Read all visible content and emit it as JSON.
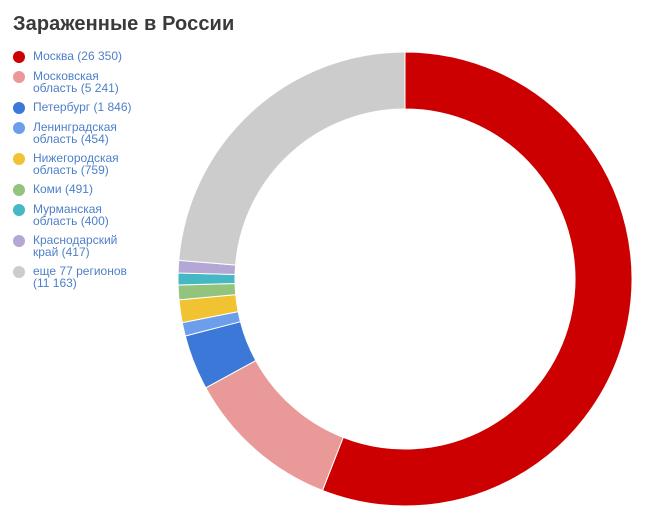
{
  "title": "Зараженные в России",
  "chart_data": {
    "type": "pie",
    "variant": "donut",
    "title": "Зараженные в России",
    "legend_position": "left",
    "start_angle_deg": 0,
    "direction": "clockwise",
    "categories": [
      "Москва",
      "Московская область",
      "Петербург",
      "Ленинградская область",
      "Нижегородская область",
      "Коми",
      "Мурманская область",
      "Краснодарский край",
      "еще 77 регионов"
    ],
    "values": [
      26350,
      5241,
      1846,
      454,
      759,
      491,
      400,
      417,
      11163
    ],
    "colors": [
      "#cc0000",
      "#ea9999",
      "#3c78d8",
      "#6d9eeb",
      "#f1c232",
      "#93c47d",
      "#45b8c4",
      "#b4a7d6",
      "#cccccc"
    ]
  },
  "legend": {
    "items": [
      {
        "label_line1": "Москва (26 350)",
        "label_line2": ""
      },
      {
        "label_line1": "Московская",
        "label_line2": "область (5 241)"
      },
      {
        "label_line1": "Петербург (1 846)",
        "label_line2": ""
      },
      {
        "label_line1": "Ленинградская",
        "label_line2": "область (454)"
      },
      {
        "label_line1": "Нижегородская",
        "label_line2": "область (759)"
      },
      {
        "label_line1": "Коми (491)",
        "label_line2": ""
      },
      {
        "label_line1": "Мурманская",
        "label_line2": "область (400)"
      },
      {
        "label_line1": "Краснодарский",
        "label_line2": "край (417)"
      },
      {
        "label_line1": "еще 77 регионов",
        "label_line2": "(11 163)"
      }
    ]
  }
}
